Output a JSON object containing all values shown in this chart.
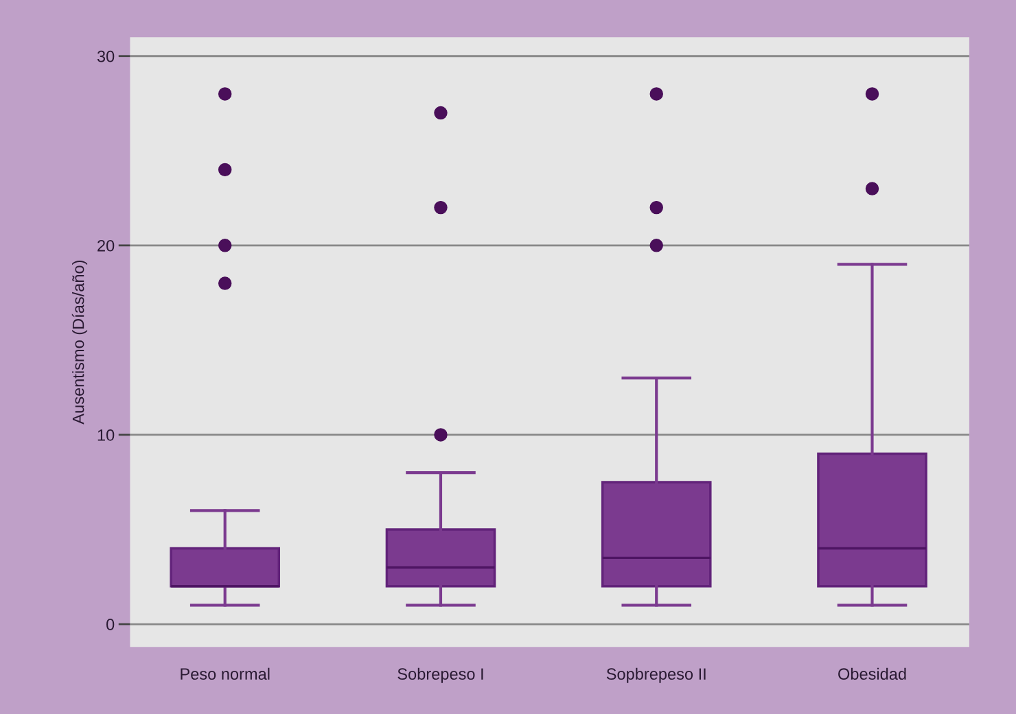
{
  "chart_data": {
    "type": "box",
    "ylabel": "Ausentismo (Días/año)",
    "categories": [
      "Peso normal",
      "Sobrepeso I",
      "Sopbrepeso II",
      "Obesidad"
    ],
    "boxes": [
      {
        "low": 1,
        "q1": 2,
        "median": 2,
        "q3": 4,
        "high": 6,
        "outliers": [
          18,
          20,
          24,
          28
        ]
      },
      {
        "low": 1,
        "q1": 2,
        "median": 3,
        "q3": 5,
        "high": 8,
        "outliers": [
          10,
          22,
          27
        ]
      },
      {
        "low": 1,
        "q1": 2,
        "median": 3.5,
        "q3": 7.5,
        "high": 13,
        "outliers": [
          20,
          22,
          28
        ]
      },
      {
        "low": 1,
        "q1": 2,
        "median": 4,
        "q3": 9,
        "high": 19,
        "outliers": [
          23,
          28
        ]
      }
    ],
    "color": "#7b3a8f",
    "ylim": [
      -1.2,
      31
    ],
    "yticks": [
      0,
      10,
      20,
      30
    ],
    "grid": "y"
  }
}
